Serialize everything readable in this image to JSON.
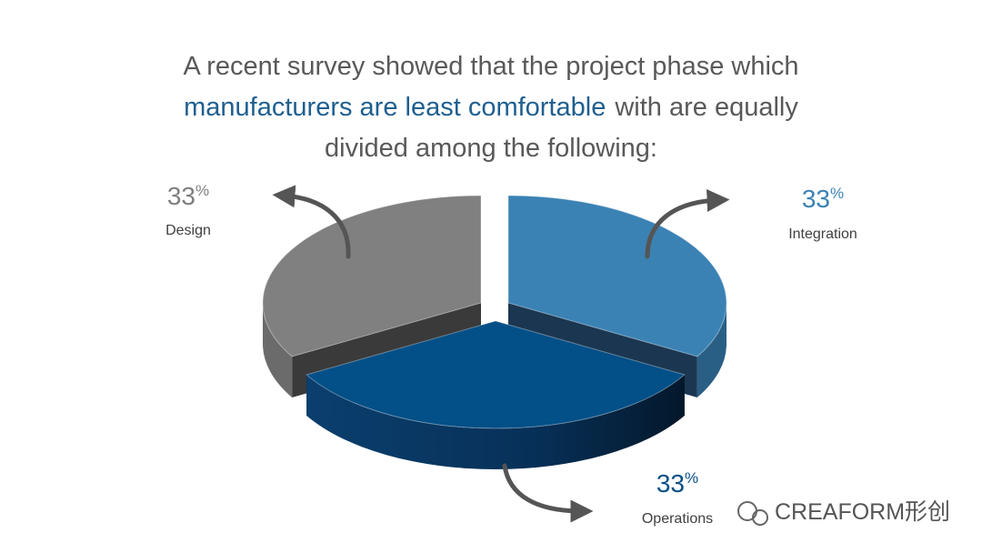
{
  "chart_data": {
    "type": "pie3d",
    "title_parts": [
      "A recent survey showed that the project phase which",
      "manufacturers are least comfortable",
      "with are equally",
      "divided among the following:"
    ],
    "categories": [
      "Integration",
      "Operations",
      "Design"
    ],
    "values": [
      33,
      33,
      33
    ],
    "value_labels": [
      "33%",
      "33%",
      "33%"
    ],
    "colors": [
      "#3b82b4",
      "#034f87",
      "#808080"
    ],
    "label_colors": [
      "#3b82b4",
      "#0a4f86",
      "#7f7f7f"
    ],
    "watermark": "CREAFORM形创"
  }
}
